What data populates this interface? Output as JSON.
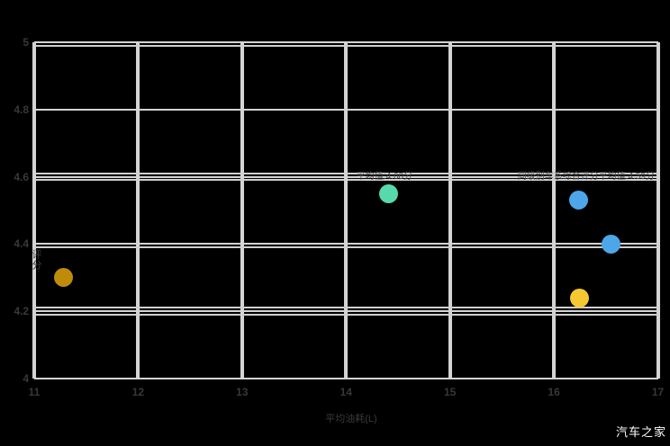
{
  "watermark": {
    "text": "汽车之家"
  },
  "chart_data": {
    "type": "scatter",
    "title": "",
    "xlabel": "平均油耗(L)",
    "ylabel": "评分",
    "xlim": [
      11,
      17
    ],
    "ylim": [
      4,
      5
    ],
    "x_ticks": [
      "11",
      "12",
      "13",
      "14",
      "15",
      "16",
      "17"
    ],
    "y_ticks": [
      "5",
      "4.8",
      "4.6",
      "4.4",
      "4.2",
      "4"
    ],
    "grid": true,
    "legend": "none",
    "background_color": "#000000",
    "grid_color": "#d4d4d4",
    "tick_label_color": "#383838",
    "annotation_color": "#4a4a4a",
    "series": [
      {
        "name": "series-olive",
        "color": "#bf8c0a",
        "points": [
          {
            "x": 11.28,
            "y": 4.3
          }
        ]
      },
      {
        "name": "series-teal",
        "color": "#57d9ac",
        "points": [
          {
            "x": 14.41,
            "y": 4.55
          }
        ]
      },
      {
        "name": "series-blue",
        "color": "#4da6e8",
        "points": [
          {
            "x": 16.24,
            "y": 4.53
          },
          {
            "x": 16.55,
            "y": 4.4
          }
        ]
      },
      {
        "name": "series-gold",
        "color": "#f5c832",
        "points": [
          {
            "x": 16.25,
            "y": 4.24
          }
        ]
      }
    ],
    "reference_lines": [
      {
        "y": 4.99
      },
      {
        "y": 4.61
      },
      {
        "y": 4.59
      },
      {
        "y": 4.39
      },
      {
        "y": 4.21
      },
      {
        "y": 4.19
      }
    ],
    "annotations": [
      {
        "text": "平均值:4.60分",
        "x": 14.37,
        "y": 4.6
      },
      {
        "text": "同级别车系综合评分平均值:4.59分",
        "x": 16.31,
        "y": 4.6
      }
    ]
  }
}
